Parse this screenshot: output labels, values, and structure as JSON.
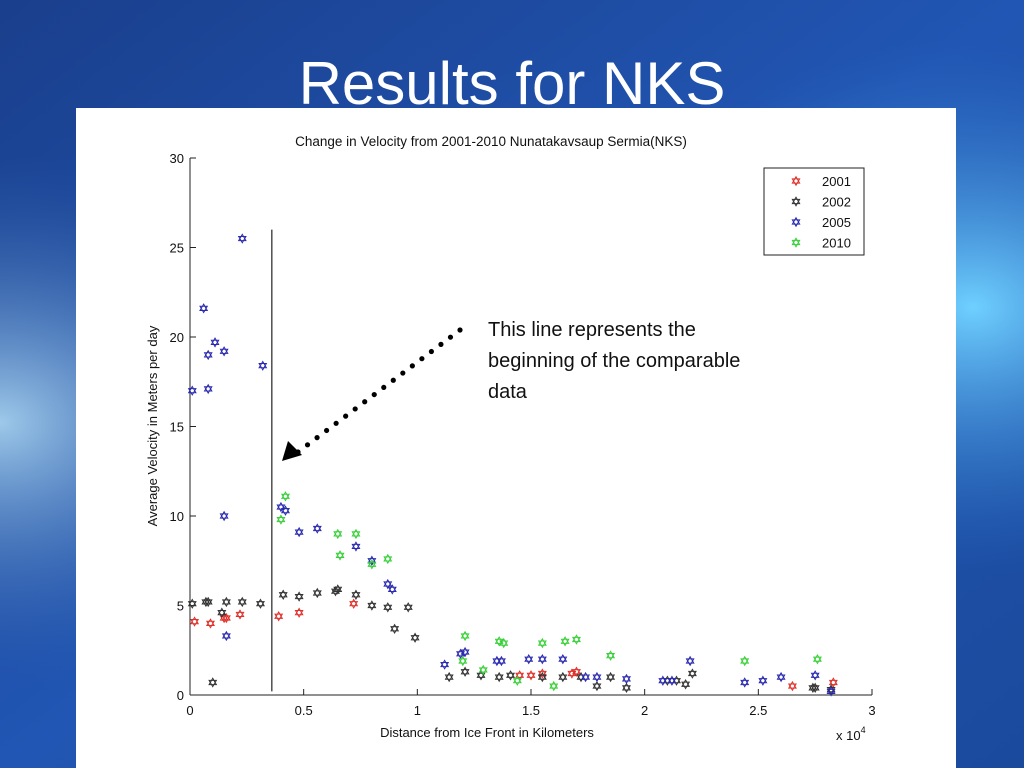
{
  "slide": {
    "title": "Results for NKS"
  },
  "chart_data": {
    "type": "scatter",
    "title": "Change in Velocity from 2001-2010 Nunatakavsaup Sermia(NKS)",
    "xlabel": "Distance from Ice Front in Kilometers",
    "ylabel": "Average Velocity in Meters per day",
    "x_scale_note": "x 10",
    "x_scale_exp": "4",
    "xlim": [
      0,
      3
    ],
    "ylim": [
      0,
      30
    ],
    "xticks": [
      "0",
      "0.5",
      "1",
      "1.5",
      "2",
      "2.5",
      "3"
    ],
    "yticks": [
      "0",
      "5",
      "10",
      "15",
      "20",
      "25",
      "30"
    ],
    "legend_position": "top-right",
    "marker": "hexagram",
    "vertical_line_x": 0.36,
    "annotation": {
      "lines": [
        "This line represents the",
        "beginning of the comparable",
        "data"
      ]
    },
    "series": [
      {
        "name": "2001",
        "color": "#e0302a",
        "points": [
          [
            0.02,
            4.1
          ],
          [
            0.09,
            4.0
          ],
          [
            0.15,
            4.3
          ],
          [
            0.16,
            4.3
          ],
          [
            0.22,
            4.5
          ],
          [
            0.39,
            4.4
          ],
          [
            0.48,
            4.6
          ],
          [
            0.72,
            5.1
          ],
          [
            1.45,
            1.1
          ],
          [
            1.5,
            1.1
          ],
          [
            1.55,
            1.2
          ],
          [
            1.68,
            1.2
          ],
          [
            1.7,
            1.3
          ],
          [
            2.65,
            0.5
          ],
          [
            2.83,
            0.7
          ]
        ]
      },
      {
        "name": "2002",
        "color": "#333333",
        "points": [
          [
            0.01,
            5.1
          ],
          [
            0.07,
            5.2
          ],
          [
            0.08,
            5.2
          ],
          [
            0.1,
            0.7
          ],
          [
            0.14,
            4.6
          ],
          [
            0.16,
            5.2
          ],
          [
            0.23,
            5.2
          ],
          [
            0.31,
            5.1
          ],
          [
            0.41,
            5.6
          ],
          [
            0.48,
            5.5
          ],
          [
            0.56,
            5.7
          ],
          [
            0.64,
            5.8
          ],
          [
            0.65,
            5.9
          ],
          [
            0.73,
            5.6
          ],
          [
            0.8,
            5.0
          ],
          [
            0.87,
            4.9
          ],
          [
            0.9,
            3.7
          ],
          [
            0.96,
            4.9
          ],
          [
            0.99,
            3.2
          ],
          [
            1.14,
            1.0
          ],
          [
            1.21,
            1.3
          ],
          [
            1.28,
            1.1
          ],
          [
            1.36,
            1.0
          ],
          [
            1.41,
            1.1
          ],
          [
            1.55,
            1.0
          ],
          [
            1.64,
            1.0
          ],
          [
            1.72,
            1.0
          ],
          [
            1.79,
            0.5
          ],
          [
            1.85,
            1.0
          ],
          [
            1.92,
            0.4
          ],
          [
            2.1,
            0.8
          ],
          [
            2.14,
            0.8
          ],
          [
            2.18,
            0.6
          ],
          [
            2.21,
            1.2
          ],
          [
            2.74,
            0.4
          ],
          [
            2.75,
            0.4
          ],
          [
            2.82,
            0.3
          ]
        ]
      },
      {
        "name": "2005",
        "color": "#2a2ab0",
        "points": [
          [
            0.01,
            17.0
          ],
          [
            0.06,
            21.6
          ],
          [
            0.08,
            17.1
          ],
          [
            0.08,
            19.0
          ],
          [
            0.11,
            19.7
          ],
          [
            0.15,
            19.2
          ],
          [
            0.15,
            10.0
          ],
          [
            0.16,
            3.3
          ],
          [
            0.23,
            25.5
          ],
          [
            0.32,
            18.4
          ],
          [
            0.4,
            10.5
          ],
          [
            0.42,
            10.3
          ],
          [
            0.48,
            9.1
          ],
          [
            0.56,
            9.3
          ],
          [
            0.73,
            8.3
          ],
          [
            0.8,
            7.5
          ],
          [
            0.87,
            6.2
          ],
          [
            0.89,
            5.9
          ],
          [
            1.12,
            1.7
          ],
          [
            1.19,
            2.3
          ],
          [
            1.21,
            2.4
          ],
          [
            1.35,
            1.9
          ],
          [
            1.37,
            1.9
          ],
          [
            1.49,
            2.0
          ],
          [
            1.55,
            2.0
          ],
          [
            1.64,
            2.0
          ],
          [
            1.74,
            1.0
          ],
          [
            1.79,
            1.0
          ],
          [
            1.92,
            0.9
          ],
          [
            2.08,
            0.8
          ],
          [
            2.12,
            0.8
          ],
          [
            2.2,
            1.9
          ],
          [
            2.44,
            0.7
          ],
          [
            2.52,
            0.8
          ],
          [
            2.6,
            1.0
          ],
          [
            2.75,
            1.1
          ],
          [
            2.82,
            0.2
          ]
        ]
      },
      {
        "name": "2010",
        "color": "#38d038",
        "points": [
          [
            0.4,
            9.8
          ],
          [
            0.42,
            11.1
          ],
          [
            0.65,
            9.0
          ],
          [
            0.66,
            7.8
          ],
          [
            0.73,
            9.0
          ],
          [
            0.8,
            7.3
          ],
          [
            0.87,
            7.6
          ],
          [
            1.2,
            1.9
          ],
          [
            1.21,
            3.3
          ],
          [
            1.29,
            1.4
          ],
          [
            1.36,
            3.0
          ],
          [
            1.38,
            2.9
          ],
          [
            1.44,
            0.8
          ],
          [
            1.55,
            2.9
          ],
          [
            1.6,
            0.5
          ],
          [
            1.65,
            3.0
          ],
          [
            1.7,
            3.1
          ],
          [
            1.85,
            2.2
          ],
          [
            2.44,
            1.9
          ],
          [
            2.76,
            2.0
          ]
        ]
      }
    ]
  }
}
